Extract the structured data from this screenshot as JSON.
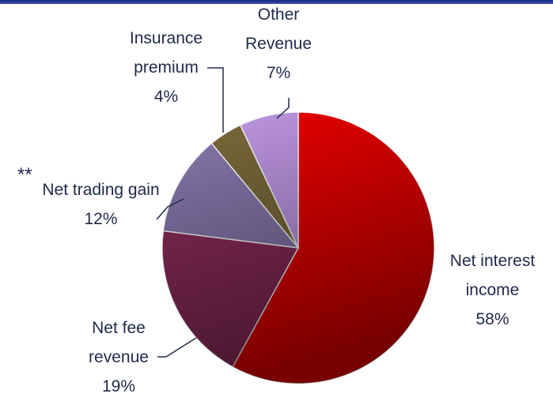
{
  "chart_data": {
    "type": "pie",
    "categories": [
      "Net interest income",
      "Net fee revenue",
      "Net trading gain",
      "Insurance premium",
      "Other Revenue"
    ],
    "values": [
      58,
      19,
      12,
      4,
      7
    ],
    "value_labels": [
      "58%",
      "19%",
      "12%",
      "4%",
      "7%"
    ],
    "colors": [
      "#f00000",
      "#8e2c5c",
      "#8a7ab0",
      "#7d6c3c",
      "#c29ae8"
    ],
    "annotations": [
      "**"
    ]
  }
}
